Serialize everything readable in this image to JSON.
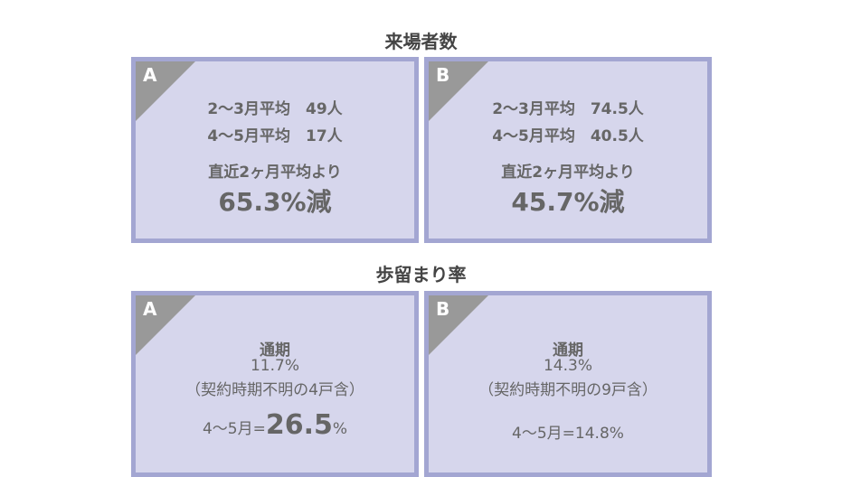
{
  "visitors": {
    "title": "来場者数",
    "a": {
      "label": "A",
      "line1": "2～3月平均　49人",
      "line2": "4～5月平均　17人",
      "caption": "直近2ヶ月平均より",
      "result": "65.3%減"
    },
    "b": {
      "label": "B",
      "line1": "2～3月平均　74.5人",
      "line2": "4～5月平均　40.5人",
      "caption": "直近2ヶ月平均より",
      "result": "45.7%減"
    }
  },
  "retention": {
    "title": "歩留まり率",
    "a": {
      "label": "A",
      "period": "通期",
      "rate": "11.7%",
      "note": "（契約時期不明の4戸含）",
      "recent_prefix": "4～5月=",
      "recent_value": "26.5",
      "recent_suffix": "%"
    },
    "b": {
      "label": "B",
      "period": "通期",
      "rate": "14.3%",
      "note": "（契約時期不明の9戸含）",
      "recent": "4～5月=14.8%"
    }
  },
  "colors": {
    "border": "#a3a6d2",
    "fill": "#d6d6ec",
    "corner": "#999999"
  }
}
